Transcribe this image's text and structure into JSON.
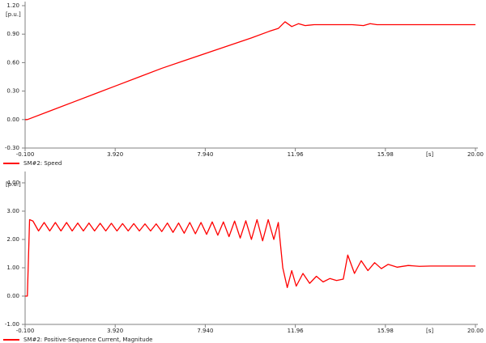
{
  "chart_data": [
    {
      "type": "line",
      "y_unit": "[p.u.]",
      "x_unit": "[s]",
      "xlim": [
        -0.1,
        20
      ],
      "ylim": [
        -0.3,
        1.2
      ],
      "xticks": [
        {
          "value": -0.1,
          "label": "-0.100"
        },
        {
          "value": 3.92,
          "label": "3.920"
        },
        {
          "value": 7.94,
          "label": "7.940"
        },
        {
          "value": 11.96,
          "label": "11.96"
        },
        {
          "value": 15.98,
          "label": "15.98"
        },
        {
          "value": 20,
          "label": "20.00"
        }
      ],
      "yticks": [
        {
          "value": -0.3,
          "label": "-0.30"
        },
        {
          "value": 0,
          "label": "0.00"
        },
        {
          "value": 0.3,
          "label": "0.30"
        },
        {
          "value": 0.6,
          "label": "0.60"
        },
        {
          "value": 0.9,
          "label": "0.90"
        },
        {
          "value": 1.2,
          "label": "1.20"
        }
      ],
      "x": [
        -0.1,
        0,
        1,
        2,
        3,
        4,
        5,
        6,
        7,
        8,
        9,
        10,
        10.8,
        11.2,
        11.5,
        11.8,
        12.1,
        12.4,
        12.8,
        13.5,
        14.5,
        15,
        15.3,
        15.6,
        16,
        17,
        18,
        19,
        20
      ],
      "series": [
        {
          "name": "SM#2: Speed",
          "color": "#ff0000",
          "values": [
            0,
            0,
            0.09,
            0.18,
            0.27,
            0.36,
            0.45,
            0.54,
            0.62,
            0.7,
            0.78,
            0.86,
            0.93,
            0.96,
            1.03,
            0.98,
            1.01,
            0.99,
            1.0,
            1.0,
            1.0,
            0.99,
            1.01,
            1.0,
            1.0,
            1.0,
            1.0,
            1.0,
            1.0
          ]
        }
      ]
    },
    {
      "type": "line",
      "y_unit": "[p.u.]",
      "x_unit": "[s]",
      "xlim": [
        -0.1,
        20
      ],
      "ylim": [
        -1,
        4
      ],
      "xticks": [
        {
          "value": -0.1,
          "label": "-0.100"
        },
        {
          "value": 3.92,
          "label": "3.920"
        },
        {
          "value": 7.94,
          "label": "7.940"
        },
        {
          "value": 11.96,
          "label": "11.96"
        },
        {
          "value": 15.98,
          "label": "15.98"
        },
        {
          "value": 20,
          "label": "20.00"
        }
      ],
      "yticks": [
        {
          "value": -1,
          "label": "-1.00"
        },
        {
          "value": 0,
          "label": "0.00"
        },
        {
          "value": 1,
          "label": "1.00"
        },
        {
          "value": 2,
          "label": "2.00"
        },
        {
          "value": 3,
          "label": "3.00"
        },
        {
          "value": 4,
          "label": "4.00"
        }
      ],
      "x": [
        -0.1,
        0,
        0.1,
        0.25,
        0.5,
        0.75,
        1,
        1.25,
        1.5,
        1.75,
        2,
        2.25,
        2.5,
        2.75,
        3,
        3.25,
        3.5,
        3.75,
        4,
        4.25,
        4.5,
        4.75,
        5,
        5.25,
        5.5,
        5.75,
        6,
        6.25,
        6.5,
        6.75,
        7,
        7.25,
        7.5,
        7.75,
        8,
        8.25,
        8.5,
        8.75,
        9,
        9.25,
        9.5,
        9.75,
        10,
        10.25,
        10.5,
        10.75,
        11,
        11.2,
        11.4,
        11.6,
        11.8,
        12,
        12.3,
        12.6,
        12.9,
        13.2,
        13.5,
        13.8,
        14.1,
        14.3,
        14.6,
        14.9,
        15.2,
        15.5,
        15.8,
        16.1,
        16.5,
        17,
        17.5,
        18,
        20
      ],
      "series": [
        {
          "name": "SM#2: Positive-Sequence Current, Magnitude",
          "color": "#ff0000",
          "values": [
            0,
            0,
            2.7,
            2.65,
            2.3,
            2.6,
            2.3,
            2.6,
            2.3,
            2.6,
            2.3,
            2.58,
            2.3,
            2.58,
            2.3,
            2.57,
            2.3,
            2.57,
            2.3,
            2.56,
            2.3,
            2.56,
            2.3,
            2.55,
            2.3,
            2.55,
            2.28,
            2.58,
            2.25,
            2.58,
            2.22,
            2.6,
            2.2,
            2.6,
            2.18,
            2.62,
            2.15,
            2.62,
            2.1,
            2.65,
            2.05,
            2.66,
            2.0,
            2.7,
            1.95,
            2.7,
            2.0,
            2.6,
            1.0,
            0.3,
            0.9,
            0.35,
            0.8,
            0.45,
            0.7,
            0.5,
            0.62,
            0.55,
            0.6,
            1.45,
            0.8,
            1.25,
            0.9,
            1.18,
            0.97,
            1.12,
            1.02,
            1.08,
            1.05,
            1.06,
            1.06
          ]
        }
      ]
    }
  ]
}
